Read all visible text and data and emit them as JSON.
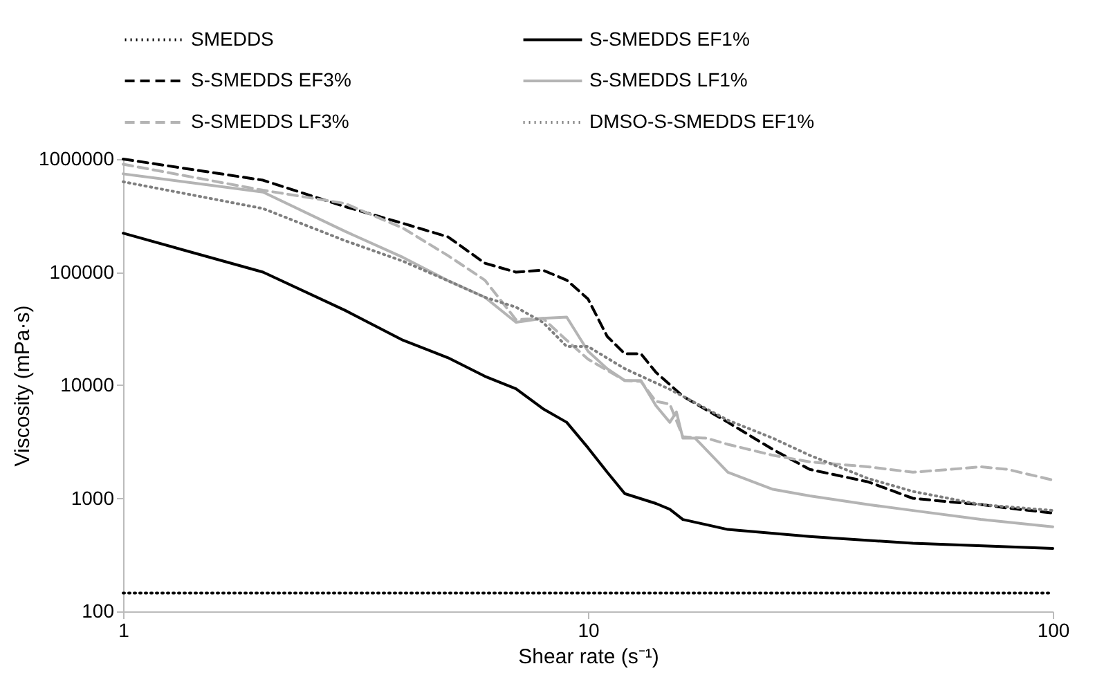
{
  "chart_data": {
    "type": "line",
    "xlabel": "Shear rate (s⁻¹)",
    "ylabel": "Viscosity (mPa·s)",
    "log": "xy",
    "xlim": [
      1,
      100
    ],
    "xticks": [
      1,
      10,
      100
    ],
    "ylim": [
      100,
      1000000
    ],
    "yticks": [
      100,
      1000,
      10000,
      100000,
      1000000
    ],
    "grid": false,
    "legend": "top",
    "marker": "none",
    "series": [
      {
        "name": "SMEDDS",
        "color": "#000000",
        "line_style": "dotted",
        "x": [
          1,
          2,
          5,
          10,
          20,
          50,
          100
        ],
        "values": [
          145,
          145,
          145,
          145,
          145,
          145,
          145
        ]
      },
      {
        "name": "S-SMEDDS EF1%",
        "color": "#000000",
        "line_style": "solid",
        "x": [
          1,
          2,
          3,
          4,
          5,
          6,
          7,
          8,
          9,
          10,
          11,
          12,
          14,
          15,
          16,
          20,
          30,
          50,
          100
        ],
        "values": [
          221000,
          100000,
          46000,
          25000,
          17500,
          12000,
          9300,
          6200,
          4700,
          2800,
          1700,
          1100,
          900,
          800,
          650,
          530,
          460,
          400,
          360
        ]
      },
      {
        "name": "S-SMEDDS EF3%",
        "color": "#000000",
        "line_style": "dashed",
        "x": [
          1,
          2,
          3,
          4,
          5,
          6,
          7,
          8,
          9,
          10,
          11,
          12,
          13,
          14,
          16,
          20,
          25,
          30,
          40,
          50,
          60,
          70,
          80,
          100
        ],
        "values": [
          1000000,
          650000,
          380000,
          270000,
          205000,
          120000,
          100000,
          104000,
          85000,
          58000,
          27000,
          19000,
          19000,
          13000,
          8000,
          4700,
          2700,
          1800,
          1400,
          1000,
          930,
          880,
          820,
          740
        ]
      },
      {
        "name": "S-SMEDDS LF1%",
        "color": "#b4b4b4",
        "line_style": "solid",
        "x": [
          1,
          2,
          3,
          4,
          5,
          6,
          7,
          8,
          9,
          10,
          11,
          12,
          13,
          14,
          15,
          15.5,
          16,
          17,
          20,
          25,
          30,
          40,
          50,
          70,
          100
        ],
        "values": [
          740000,
          510000,
          230000,
          135000,
          84000,
          60000,
          36000,
          39000,
          40000,
          20000,
          14000,
          11000,
          11000,
          6600,
          4700,
          5800,
          3400,
          3400,
          1700,
          1200,
          1050,
          880,
          780,
          650,
          560
        ]
      },
      {
        "name": "S-SMEDDS LF3%",
        "color": "#b4b4b4",
        "line_style": "dashed",
        "x": [
          1,
          2,
          3,
          4,
          5,
          6,
          7,
          8,
          9,
          10,
          12,
          13,
          14,
          15,
          16,
          18,
          20,
          25,
          30,
          40,
          50,
          60,
          70,
          80,
          100
        ],
        "values": [
          900000,
          530000,
          405000,
          245000,
          140000,
          85000,
          38000,
          39000,
          25000,
          17000,
          11000,
          10800,
          7200,
          6800,
          3500,
          3400,
          3000,
          2400,
          2100,
          1900,
          1700,
          1800,
          1900,
          1800,
          1450
        ]
      },
      {
        "name": "DMSO-S-SMEDDS EF1%",
        "color": "#7f7f7f",
        "line_style": "dotted",
        "x": [
          1,
          2,
          3,
          4,
          5,
          6,
          7,
          8,
          9,
          10,
          12,
          15,
          20,
          25,
          30,
          40,
          50,
          70,
          100
        ],
        "values": [
          630000,
          365000,
          190000,
          125000,
          84000,
          60000,
          49000,
          36000,
          22000,
          22000,
          14000,
          9200,
          4900,
          3400,
          2400,
          1500,
          1150,
          880,
          780
        ]
      }
    ]
  }
}
